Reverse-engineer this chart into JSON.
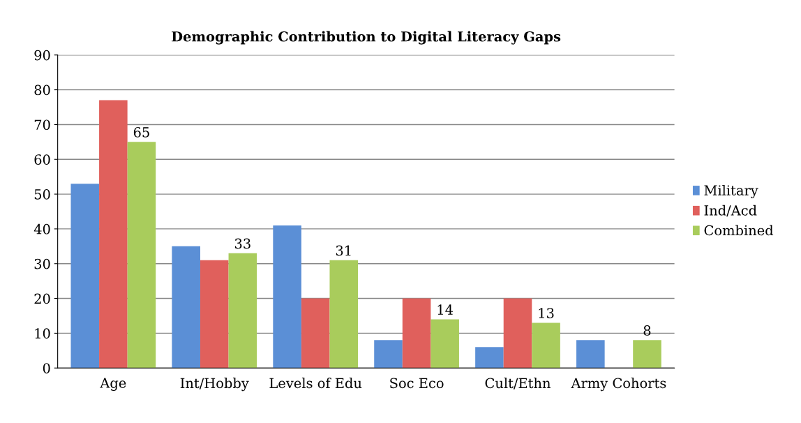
{
  "chart_data": {
    "type": "bar",
    "title": "Demographic Contribution to Digital Literacy Gaps",
    "categories": [
      "Age",
      "Int/Hobby",
      "Levels of Edu",
      "Soc Eco",
      "Cult/Ethn",
      "Army Cohorts"
    ],
    "series": [
      {
        "name": "Military",
        "color": "#5b8fd6",
        "values": [
          53,
          35,
          41,
          8,
          6,
          8
        ]
      },
      {
        "name": "Ind/Acd",
        "color": "#e0605c",
        "values": [
          77,
          31,
          20,
          20,
          20,
          0
        ]
      },
      {
        "name": "Combined",
        "color": "#a9cc5c",
        "values": [
          65,
          33,
          31,
          14,
          13,
          8
        ],
        "value_labels": [
          "65",
          "33",
          "31",
          "14",
          "13",
          "8"
        ]
      }
    ],
    "ylim": [
      0,
      90
    ],
    "yticks": [
      0,
      10,
      20,
      30,
      40,
      50,
      60,
      70,
      80,
      90
    ],
    "grid": "y",
    "legend": "right"
  }
}
